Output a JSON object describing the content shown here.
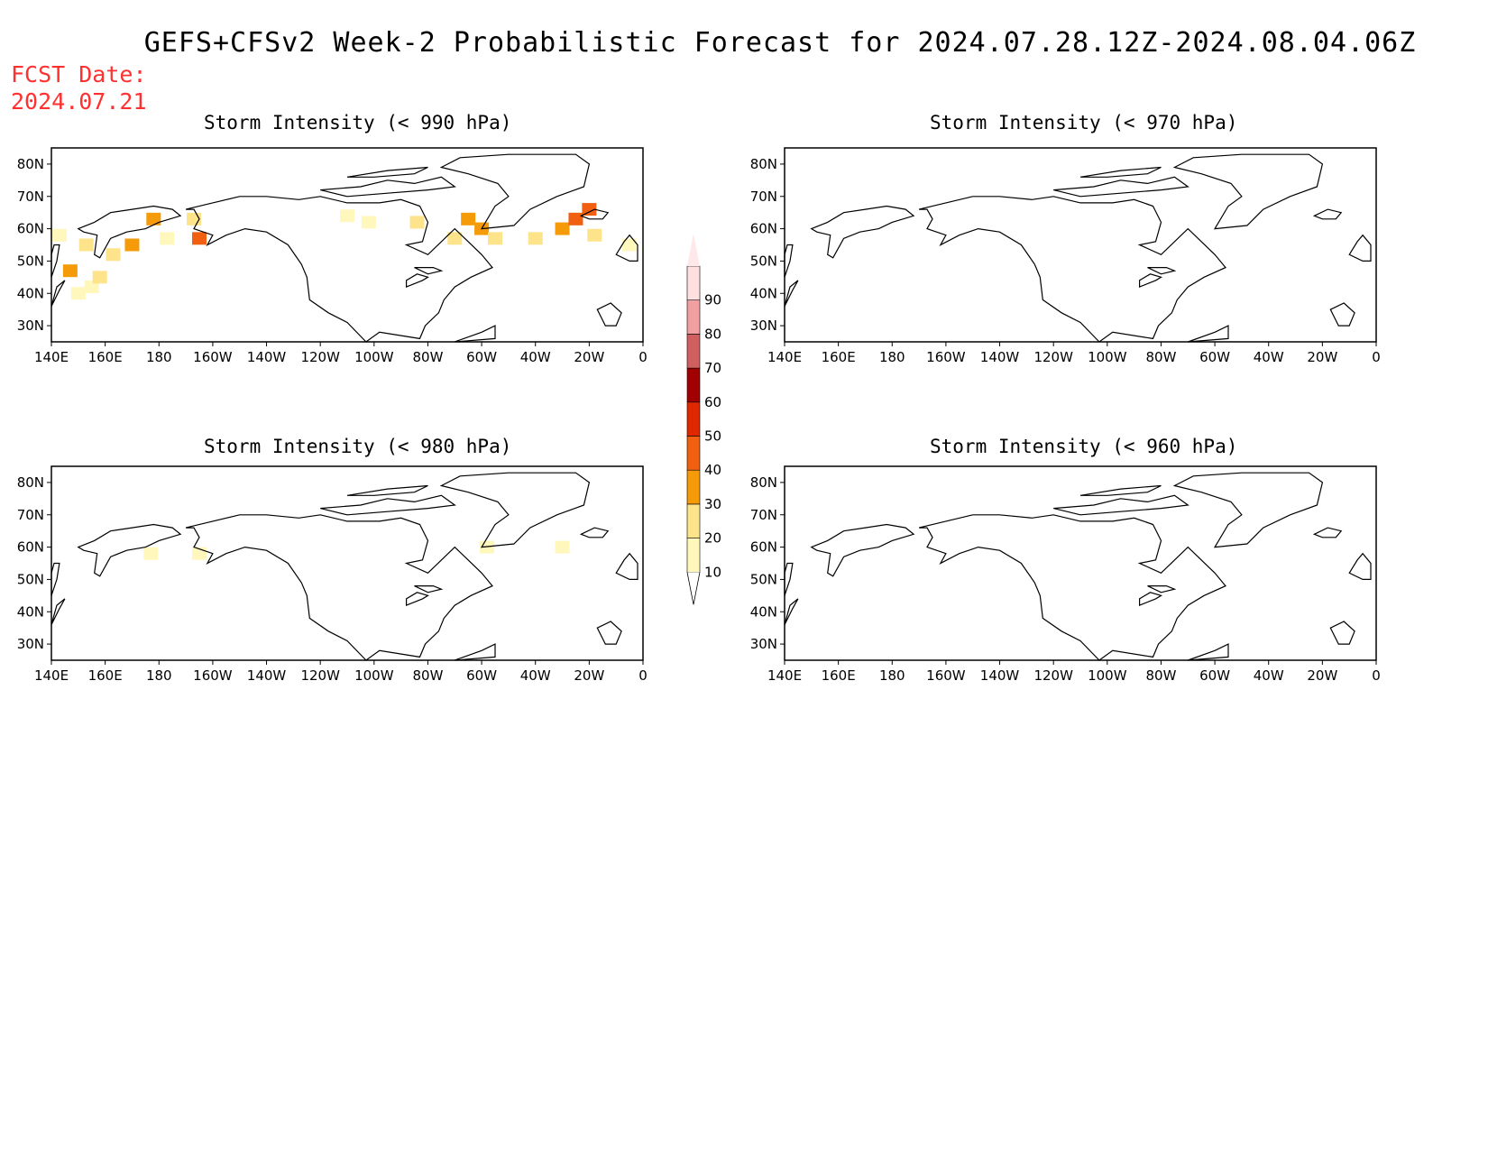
{
  "title": "GEFS+CFSv2 Week-2 Probabilistic Forecast for 2024.07.28.12Z-2024.08.04.06Z",
  "fcst_date": {
    "label": "FCST Date:",
    "value": "2024.07.21"
  },
  "panels": [
    {
      "id": "p990",
      "title": "Storm Intensity (< 990 hPa)"
    },
    {
      "id": "p970",
      "title": "Storm Intensity (< 970 hPa)"
    },
    {
      "id": "p980",
      "title": "Storm Intensity (< 980 hPa)"
    },
    {
      "id": "p960",
      "title": "Storm Intensity (< 960 hPa)"
    }
  ],
  "axes": {
    "lon_labels": [
      "140E",
      "160E",
      "180",
      "160W",
      "140W",
      "120W",
      "100W",
      "80W",
      "60W",
      "40W",
      "20W",
      "0"
    ],
    "lat_labels": [
      "80N",
      "70N",
      "60N",
      "50N",
      "40N",
      "30N"
    ],
    "lon_range_east": [
      140,
      360
    ],
    "lat_range": [
      25,
      85
    ]
  },
  "colorbar": {
    "levels": [
      "10",
      "20",
      "30",
      "40",
      "50",
      "60",
      "70",
      "80",
      "90"
    ],
    "colors": [
      "#fff7bc",
      "#fde38a",
      "#f59b0a",
      "#f06010",
      "#e02800",
      "#a00000",
      "#d06060",
      "#f0a0a0",
      "#ffe0e0"
    ]
  },
  "chart_data": {
    "type": "heatmap",
    "units": "percent probability",
    "panels": {
      "p990": [
        {
          "lon": 143,
          "lat": 58,
          "v": 15
        },
        {
          "lon": 147,
          "lat": 47,
          "v": 35
        },
        {
          "lon": 150,
          "lat": 40,
          "v": 15
        },
        {
          "lon": 155,
          "lat": 42,
          "v": 15
        },
        {
          "lon": 158,
          "lat": 45,
          "v": 20
        },
        {
          "lon": 153,
          "lat": 55,
          "v": 20
        },
        {
          "lon": 163,
          "lat": 52,
          "v": 25
        },
        {
          "lon": 170,
          "lat": 55,
          "v": 30
        },
        {
          "lon": 178,
          "lat": 63,
          "v": 35
        },
        {
          "lon": 183,
          "lat": 57,
          "v": 15
        },
        {
          "lon": 193,
          "lat": 63,
          "v": 25
        },
        {
          "lon": 195,
          "lat": 57,
          "v": 45
        },
        {
          "lon": 250,
          "lat": 64,
          "v": 15
        },
        {
          "lon": 258,
          "lat": 62,
          "v": 15
        },
        {
          "lon": 276,
          "lat": 62,
          "v": 25
        },
        {
          "lon": 290,
          "lat": 57,
          "v": 25
        },
        {
          "lon": 295,
          "lat": 63,
          "v": 35
        },
        {
          "lon": 300,
          "lat": 60,
          "v": 35
        },
        {
          "lon": 305,
          "lat": 57,
          "v": 25
        },
        {
          "lon": 320,
          "lat": 57,
          "v": 20
        },
        {
          "lon": 330,
          "lat": 60,
          "v": 35
        },
        {
          "lon": 335,
          "lat": 63,
          "v": 45
        },
        {
          "lon": 340,
          "lat": 66,
          "v": 40
        },
        {
          "lon": 342,
          "lat": 58,
          "v": 20
        },
        {
          "lon": 355,
          "lat": 55,
          "v": 15
        }
      ],
      "p970": [],
      "p980": [
        {
          "lon": 177,
          "lat": 58,
          "v": 15
        },
        {
          "lon": 195,
          "lat": 58,
          "v": 15
        },
        {
          "lon": 302,
          "lat": 60,
          "v": 15
        },
        {
          "lon": 330,
          "lat": 60,
          "v": 15
        }
      ],
      "p960": []
    }
  }
}
